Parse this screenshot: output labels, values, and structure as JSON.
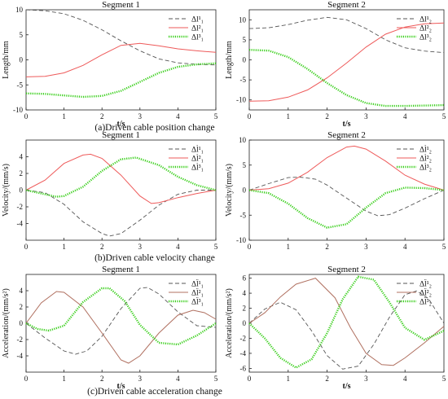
{
  "panel_captions": [
    "(a)Driven cable position change",
    "(b)Driven cable velocity change",
    "(c)Driven cable acceleration change"
  ],
  "colors": {
    "series1": "#555555",
    "series2": "#ee5a5a",
    "series3": "#3ccf1e",
    "row3_series2": "#b07060"
  },
  "chart_data": [
    {
      "type": "line",
      "title": "Segment 1",
      "xlabel": "t/s",
      "ylabel": "Length/mm",
      "xlim": [
        0,
        5
      ],
      "ylim": [
        -10,
        10
      ],
      "xticks": [
        "0",
        "1",
        "2",
        "3",
        "4",
        "5"
      ],
      "yticks": [
        "10",
        "5",
        "0",
        "-5",
        "-10"
      ],
      "legend_position": "top-right",
      "grid": false,
      "series": [
        {
          "name": "Δl¹₁",
          "style": "dashed",
          "x": [
            0,
            0.5,
            1,
            1.5,
            2,
            2.5,
            3,
            3.5,
            4,
            4.5,
            5
          ],
          "y": [
            10,
            9.8,
            9.2,
            7.9,
            6.0,
            3.8,
            1.8,
            0.2,
            -0.6,
            -0.9,
            -1.0
          ]
        },
        {
          "name": "Δl²₁",
          "style": "solid",
          "x": [
            0,
            0.5,
            1,
            1.5,
            2,
            2.5,
            3,
            3.5,
            4,
            4.5,
            5
          ],
          "y": [
            -3.4,
            -3.3,
            -2.6,
            -1.1,
            1.0,
            2.9,
            3.3,
            2.8,
            2.2,
            1.8,
            1.5
          ]
        },
        {
          "name": "Δl³₁",
          "style": "dotted",
          "x": [
            0,
            0.5,
            1,
            1.5,
            2,
            2.5,
            3,
            3.5,
            4,
            4.5,
            5
          ],
          "y": [
            -6.7,
            -6.8,
            -7.1,
            -7.4,
            -7.2,
            -6.2,
            -4.4,
            -2.6,
            -1.4,
            -0.9,
            -0.7
          ]
        }
      ]
    },
    {
      "type": "line",
      "title": "Segment 2",
      "xlabel": "t/s",
      "ylabel": "Length/mm",
      "xlim": [
        0,
        5
      ],
      "ylim": [
        -12.5,
        12.5
      ],
      "xticks": [
        "0",
        "1",
        "2",
        "3",
        "4",
        "5"
      ],
      "yticks": [
        "10",
        "5",
        "0",
        "-5",
        "-10"
      ],
      "legend_position": "top-right",
      "grid": false,
      "series": [
        {
          "name": "Δl¹₂",
          "style": "dashed",
          "x": [
            0,
            0.5,
            1,
            1.5,
            2,
            2.5,
            3,
            3.5,
            4,
            4.5,
            5
          ],
          "y": [
            7.8,
            8.0,
            8.8,
            9.9,
            10.6,
            10.0,
            7.8,
            5.0,
            3.0,
            2.2,
            1.8
          ]
        },
        {
          "name": "Δl²₂",
          "style": "solid",
          "x": [
            0,
            0.5,
            1,
            1.5,
            2,
            2.5,
            3,
            3.5,
            4,
            4.5,
            5
          ],
          "y": [
            -10.3,
            -10.2,
            -9.3,
            -7.5,
            -4.5,
            -0.8,
            3.2,
            6.4,
            8.2,
            9.0,
            9.2
          ]
        },
        {
          "name": "Δl³₂",
          "style": "dotted",
          "x": [
            0,
            0.5,
            1,
            1.5,
            2,
            2.5,
            3,
            3.5,
            4,
            4.5,
            5
          ],
          "y": [
            2.5,
            2.3,
            0.7,
            -2.3,
            -5.8,
            -8.8,
            -10.8,
            -11.5,
            -11.5,
            -11.4,
            -11.3
          ]
        }
      ]
    },
    {
      "type": "line",
      "title": "Segment 1",
      "xlabel": "",
      "ylabel": "Velocity/(mm/s)",
      "xlim": [
        0,
        5
      ],
      "ylim": [
        -6,
        6
      ],
      "xticks": [
        "0",
        "1",
        "2",
        "3",
        "4",
        "5"
      ],
      "yticks": [
        "4",
        "2",
        "0",
        "-2",
        "-4"
      ],
      "legend_position": "top-right",
      "grid": false,
      "series": [
        {
          "name": "Δl̇¹₁",
          "style": "dashed",
          "x": [
            0,
            0.5,
            1,
            1.5,
            2,
            2.2,
            2.5,
            3,
            3.5,
            4,
            4.5,
            5
          ],
          "y": [
            0,
            -0.3,
            -1.7,
            -3.8,
            -5.2,
            -5.5,
            -5.2,
            -3.6,
            -1.8,
            -0.5,
            0,
            0
          ]
        },
        {
          "name": "Δl̇²₁",
          "style": "solid",
          "x": [
            0,
            0.5,
            1,
            1.5,
            1.7,
            2,
            2.5,
            3,
            3.3,
            3.5,
            4,
            4.5,
            5
          ],
          "y": [
            0,
            1.2,
            3.2,
            4.2,
            4.3,
            3.8,
            1.8,
            -0.7,
            -1.6,
            -1.5,
            -0.9,
            -0.4,
            0
          ]
        },
        {
          "name": "Δl̇³₁",
          "style": "dotted",
          "x": [
            0,
            0.5,
            0.8,
            1,
            1.5,
            2,
            2.5,
            2.9,
            3.5,
            4,
            4.5,
            5
          ],
          "y": [
            0,
            -0.5,
            -0.8,
            -0.7,
            0.4,
            2.3,
            3.7,
            3.9,
            3.0,
            1.6,
            0.6,
            0
          ]
        }
      ]
    },
    {
      "type": "line",
      "title": "Segment 2",
      "xlabel": "",
      "ylabel": "Velocity/(mm/s)",
      "xlim": [
        0,
        5
      ],
      "ylim": [
        -10,
        10
      ],
      "xticks": [
        "0",
        "1",
        "2",
        "3",
        "4",
        "5"
      ],
      "yticks": [
        "10",
        "5",
        "0",
        "-5",
        "-10"
      ],
      "legend_position": "top-right",
      "grid": false,
      "series": [
        {
          "name": "Δl̇¹₂",
          "style": "dashed",
          "x": [
            0,
            0.5,
            1,
            1.3,
            1.7,
            2,
            2.5,
            3,
            3.3,
            3.6,
            4,
            4.5,
            5
          ],
          "y": [
            0,
            1.3,
            2.5,
            2.6,
            2.2,
            1.0,
            -1.6,
            -4.2,
            -5.1,
            -4.9,
            -3.6,
            -1.7,
            0
          ]
        },
        {
          "name": "Δl̇²₂",
          "style": "solid",
          "x": [
            0,
            0.5,
            1,
            1.5,
            2,
            2.5,
            2.7,
            3,
            3.5,
            4,
            4.5,
            5
          ],
          "y": [
            0,
            0.3,
            1.4,
            3.6,
            6.5,
            8.6,
            8.8,
            8.2,
            5.8,
            3.0,
            1.2,
            0
          ]
        },
        {
          "name": "Δl̇³₂",
          "style": "dotted",
          "x": [
            0,
            0.5,
            1,
            1.5,
            2,
            2.5,
            3,
            3.5,
            4,
            4.5,
            5
          ],
          "y": [
            0,
            -0.6,
            -2.7,
            -5.6,
            -7.5,
            -6.8,
            -3.5,
            -0.6,
            0.5,
            0.4,
            0
          ]
        }
      ]
    },
    {
      "type": "line",
      "title": "Segment 1",
      "xlabel": "t/s",
      "ylabel": "Acceleration/(mm/s²)",
      "xlim": [
        0,
        5
      ],
      "ylim": [
        -6,
        6
      ],
      "xticks": [
        "0",
        "1",
        "2",
        "3",
        "4",
        "5"
      ],
      "yticks": [
        "4",
        "2",
        "0",
        "-2",
        "-4"
      ],
      "legend_position": "top-right",
      "grid": false,
      "series": [
        {
          "name": "Δl̈¹₁",
          "style": "dashed",
          "x": [
            0,
            0.5,
            1,
            1.3,
            1.6,
            2,
            2.5,
            3,
            3.2,
            3.5,
            4,
            4.5,
            5
          ],
          "y": [
            0,
            -1.8,
            -3.4,
            -3.8,
            -3.4,
            -1.6,
            1.8,
            4.3,
            4.4,
            3.6,
            1.4,
            -0.3,
            -0.5
          ]
        },
        {
          "name": "Δl̈²₁",
          "style": "solid",
          "x": [
            0,
            0.4,
            0.8,
            1,
            1.5,
            2,
            2.5,
            2.7,
            3,
            3.5,
            4,
            4.4,
            4.7,
            5
          ],
          "y": [
            0,
            2.5,
            3.9,
            3.8,
            2.0,
            -1.2,
            -4.5,
            -4.9,
            -4.0,
            -1.2,
            1.0,
            1.6,
            1.3,
            0.5
          ]
        },
        {
          "name": "Δl̈³₁",
          "style": "dotted",
          "x": [
            0,
            0.3,
            0.6,
            1,
            1.5,
            2,
            2.2,
            2.6,
            3,
            3.5,
            4,
            4.5,
            5
          ],
          "y": [
            0,
            -0.7,
            -0.9,
            -0.3,
            2.6,
            4.3,
            4.3,
            2.7,
            -0.2,
            -2.4,
            -2.6,
            -1.5,
            0
          ]
        }
      ]
    },
    {
      "type": "line",
      "title": "Segment 2",
      "xlabel": "t/s",
      "ylabel": "Acceleration/(mm/s²)",
      "xlim": [
        0,
        5
      ],
      "ylim": [
        -6.5,
        6.5
      ],
      "xticks": [
        "0",
        "1",
        "2",
        "3",
        "4",
        "5"
      ],
      "yticks": [
        "6",
        "4",
        "2",
        "0",
        "-2",
        "-4",
        "-6"
      ],
      "legend_position": "top-right",
      "grid": false,
      "series": [
        {
          "name": "Δl̈¹₂",
          "style": "dashed",
          "x": [
            0,
            0.4,
            0.8,
            1.2,
            1.6,
            2,
            2.4,
            2.8,
            3.2,
            3.6,
            4,
            4.3,
            4.6,
            5
          ],
          "y": [
            0,
            1.9,
            2.8,
            1.8,
            -1.0,
            -4.3,
            -6.1,
            -5.7,
            -2.8,
            0.8,
            3.8,
            4.3,
            3.3,
            0
          ]
        },
        {
          "name": "Δl̈²₂",
          "style": "solid",
          "x": [
            0,
            0.4,
            0.8,
            1.2,
            1.7,
            2.2,
            2.6,
            3,
            3.4,
            3.7,
            4,
            4.5,
            5
          ],
          "y": [
            0,
            1.4,
            3.5,
            5.2,
            6.0,
            3.4,
            -0.6,
            -4.0,
            -5.5,
            -5.6,
            -4.6,
            -2.6,
            -0.4
          ]
        },
        {
          "name": "Δl̈³₂",
          "style": "dotted",
          "x": [
            0,
            0.4,
            0.8,
            1.2,
            1.6,
            2,
            2.4,
            2.8,
            3.2,
            3.6,
            4,
            4.5,
            5
          ],
          "y": [
            0,
            -2.0,
            -4.6,
            -5.9,
            -4.8,
            -1.3,
            3.2,
            6.2,
            5.8,
            2.8,
            -0.6,
            -2.2,
            -1.0
          ]
        }
      ]
    }
  ]
}
